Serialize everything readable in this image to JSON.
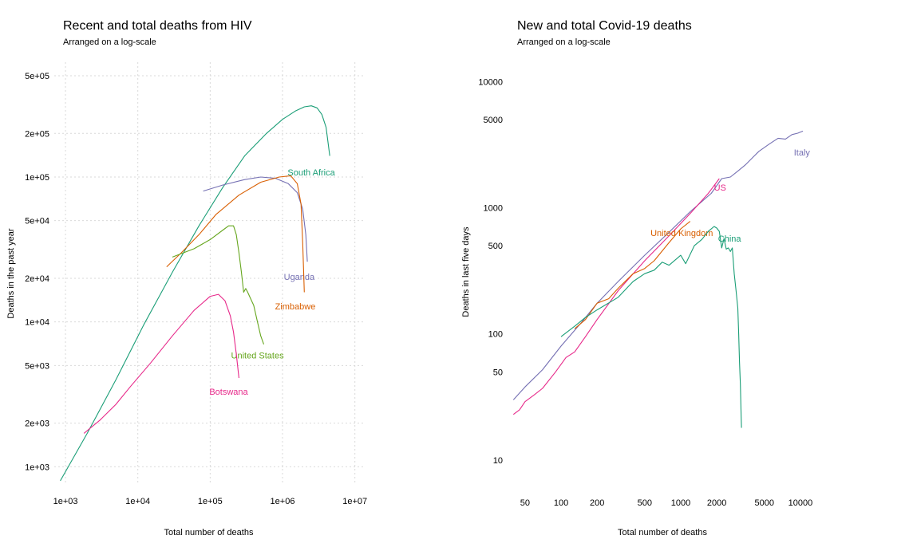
{
  "chart_data": [
    {
      "type": "line",
      "title": "Recent and total deaths from HIV",
      "subtitle": "Arranged on a log-scale",
      "xlabel": "Total number of deaths",
      "ylabel": "Deaths in the past year",
      "xscale": "log",
      "yscale": "log",
      "grid": true,
      "xlim": [
        700,
        13000000
      ],
      "ylim": [
        750,
        620000
      ],
      "xticks": [
        {
          "value": 1000,
          "label": "1e+03"
        },
        {
          "value": 10000,
          "label": "1e+04"
        },
        {
          "value": 100000,
          "label": "1e+05"
        },
        {
          "value": 1000000,
          "label": "1e+06"
        },
        {
          "value": 10000000,
          "label": "1e+07"
        }
      ],
      "yticks": [
        {
          "value": 1000,
          "label": "1e+03"
        },
        {
          "value": 2000,
          "label": "2e+03"
        },
        {
          "value": 5000,
          "label": "5e+03"
        },
        {
          "value": 10000,
          "label": "1e+04"
        },
        {
          "value": 20000,
          "label": "2e+04"
        },
        {
          "value": 50000,
          "label": "5e+04"
        },
        {
          "value": 100000,
          "label": "1e+05"
        },
        {
          "value": 200000,
          "label": "2e+05"
        },
        {
          "value": 500000,
          "label": "5e+05"
        }
      ],
      "series": [
        {
          "name": "South Africa",
          "color": "#1b9e77",
          "label_at": [
            2500000,
            108000
          ],
          "x": [
            850,
            2000,
            5000,
            12000,
            30000,
            70000,
            150000,
            300000,
            600000,
            1000000,
            1500000,
            2000000,
            2500000,
            3000000,
            3500000,
            4000000,
            4500000
          ],
          "y": [
            800,
            1700,
            4000,
            9500,
            22000,
            46000,
            85000,
            140000,
            200000,
            250000,
            285000,
            305000,
            310000,
            300000,
            270000,
            220000,
            140000
          ]
        },
        {
          "name": "Uganda",
          "color": "#7570b3",
          "label_at": [
            1700000,
            20500
          ],
          "x": [
            80000,
            150000,
            300000,
            500000,
            800000,
            1200000,
            1600000,
            1900000,
            2100000,
            2200000
          ],
          "y": [
            80000,
            88000,
            96000,
            100000,
            98000,
            90000,
            78000,
            60000,
            40000,
            26000
          ]
        },
        {
          "name": "Zimbabwe",
          "color": "#d95f02",
          "label_at": [
            1500000,
            12800
          ],
          "x": [
            25000,
            40000,
            70000,
            120000,
            250000,
            500000,
            900000,
            1300000,
            1600000,
            1800000,
            1900000,
            2000000
          ],
          "y": [
            24000,
            30000,
            40000,
            55000,
            75000,
            92000,
            100000,
            102000,
            90000,
            65000,
            35000,
            16000
          ]
        },
        {
          "name": "United States",
          "color": "#66a61e",
          "label_at": [
            450000,
            5900
          ],
          "x": [
            30000,
            60000,
            100000,
            150000,
            180000,
            210000,
            230000,
            250000,
            270000,
            290000,
            310000,
            330000,
            350000,
            400000,
            450000,
            500000,
            550000
          ],
          "y": [
            28000,
            32000,
            37000,
            43000,
            46000,
            46000,
            40000,
            30000,
            22000,
            16000,
            17000,
            16000,
            15000,
            13000,
            10000,
            8000,
            7000
          ]
        },
        {
          "name": "Botswana",
          "color": "#e7298a",
          "label_at": [
            180000,
            3300
          ],
          "x": [
            1800,
            3000,
            5000,
            8000,
            15000,
            30000,
            60000,
            100000,
            130000,
            160000,
            190000,
            210000,
            230000,
            250000
          ],
          "y": [
            1700,
            2100,
            2700,
            3600,
            5200,
            8000,
            12000,
            15000,
            15500,
            14000,
            11000,
            8500,
            6000,
            4100
          ]
        }
      ]
    },
    {
      "type": "line",
      "title": "New and total Covid-19 deaths",
      "subtitle": "Arranged on a log-scale",
      "xlabel": "Total number of deaths",
      "ylabel": "Deaths in last five days",
      "xscale": "log",
      "yscale": "log",
      "grid": false,
      "xlim": [
        38,
        13000
      ],
      "ylim": [
        6,
        16000
      ],
      "xticks": [
        {
          "value": 50,
          "label": "50"
        },
        {
          "value": 100,
          "label": "100"
        },
        {
          "value": 200,
          "label": "200"
        },
        {
          "value": 500,
          "label": "500"
        },
        {
          "value": 1000,
          "label": "1000"
        },
        {
          "value": 2000,
          "label": "2000"
        },
        {
          "value": 5000,
          "label": "5000"
        },
        {
          "value": 10000,
          "label": "10000"
        }
      ],
      "yticks": [
        {
          "value": 10,
          "label": "10"
        },
        {
          "value": 50,
          "label": "50"
        },
        {
          "value": 100,
          "label": "100"
        },
        {
          "value": 500,
          "label": "500"
        },
        {
          "value": 1000,
          "label": "1000"
        },
        {
          "value": 5000,
          "label": "5000"
        },
        {
          "value": 10000,
          "label": "10000"
        }
      ],
      "series": [
        {
          "name": "Italy",
          "color": "#7570b3",
          "label_at": [
            10300,
            2750
          ],
          "x": [
            40,
            50,
            70,
            100,
            150,
            200,
            300,
            500,
            800,
            1200,
            1800,
            2200,
            2600,
            3000,
            3500,
            4000,
            4500,
            5500,
            6500,
            7500,
            8500,
            9500,
            10500
          ],
          "y": [
            30,
            38,
            52,
            80,
            125,
            175,
            260,
            420,
            640,
            930,
            1300,
            1700,
            1750,
            1950,
            2200,
            2500,
            2800,
            3200,
            3550,
            3500,
            3800,
            3900,
            4050
          ]
        },
        {
          "name": "US",
          "color": "#e7298a",
          "label_at": [
            2130,
            1450
          ],
          "x": [
            40,
            45,
            50,
            60,
            70,
            90,
            110,
            130,
            160,
            200,
            300,
            500,
            800,
            1200,
            1700,
            2100
          ],
          "y": [
            23,
            25,
            29,
            33,
            37,
            50,
            65,
            72,
            95,
            130,
            220,
            380,
            600,
            900,
            1300,
            1700
          ]
        },
        {
          "name": "United Kingdom",
          "color": "#d95f02",
          "label_at": [
            1020,
            630
          ],
          "x": [
            130,
            160,
            200,
            250,
            300,
            400,
            500,
            600,
            800,
            1000,
            1200
          ],
          "y": [
            110,
            130,
            175,
            190,
            230,
            300,
            330,
            380,
            530,
            680,
            780
          ]
        },
        {
          "name": "China",
          "color": "#1b9e77",
          "label_at": [
            2560,
            570
          ],
          "x": [
            100,
            130,
            160,
            200,
            300,
            400,
            500,
            600,
            700,
            800,
            1000,
            1100,
            1300,
            1500,
            1700,
            1900,
            2000,
            2100,
            2200,
            2300,
            2400,
            2500,
            2600,
            2700,
            2800,
            2900,
            3000,
            3050,
            3100,
            3150,
            3200,
            3220
          ],
          "y": [
            95,
            115,
            135,
            155,
            195,
            260,
            300,
            320,
            370,
            350,
            420,
            360,
            500,
            560,
            650,
            710,
            690,
            650,
            480,
            570,
            470,
            480,
            450,
            480,
            300,
            220,
            160,
            100,
            60,
            40,
            22,
            18
          ]
        }
      ]
    }
  ]
}
